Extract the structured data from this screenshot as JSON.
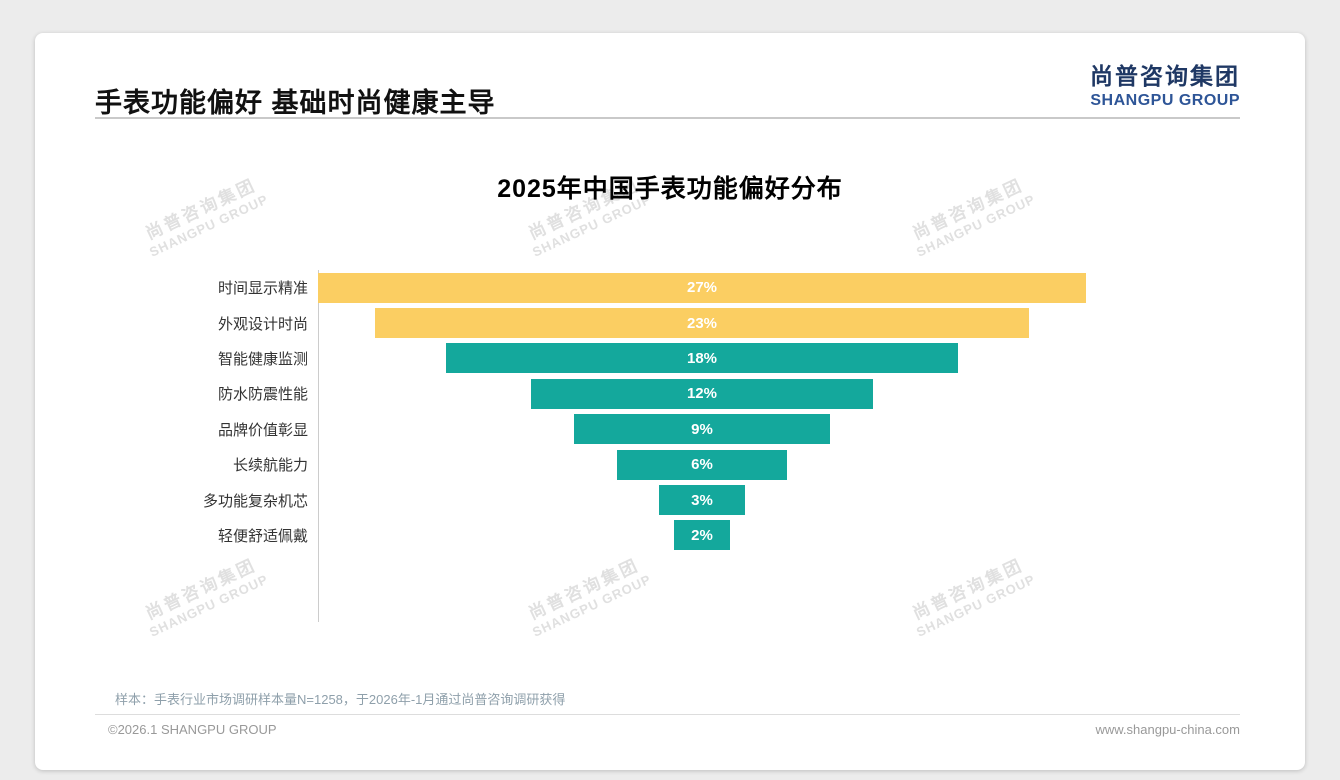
{
  "page": {
    "title": "手表功能偏好 基础时尚健康主导",
    "logo": {
      "cn": "尚普咨询集团",
      "en": "SHANGPU GROUP"
    },
    "watermark": {
      "cn": "尚普咨询集团",
      "en": "SHANGPU GROUP"
    },
    "footnote": "样本：手表行业市场调研样本量N=1258，于2026年-1月通过尚普咨询调研获得",
    "footer_left": "©2026.1 SHANGPU GROUP",
    "footer_right": "www.shangpu-china.com"
  },
  "chart_data": {
    "type": "bar",
    "variant": "centered-funnel-horizontal",
    "title": "2025年中国手表功能偏好分布",
    "categories": [
      "时间显示精准",
      "外观设计时尚",
      "智能健康监测",
      "防水防震性能",
      "品牌价值彰显",
      "长续航能力",
      "多功能复杂机芯",
      "轻便舒适佩戴"
    ],
    "values": [
      27,
      23,
      18,
      12,
      9,
      6,
      3,
      2
    ],
    "value_labels": [
      "27%",
      "23%",
      "18%",
      "12%",
      "9%",
      "6%",
      "3%",
      "2%"
    ],
    "unit": "%",
    "xlim": [
      0,
      27
    ],
    "colors": [
      "#fbce62",
      "#fbce62",
      "#14a89c",
      "#14a89c",
      "#14a89c",
      "#14a89c",
      "#14a89c",
      "#14a89c"
    ],
    "accent_yellow": "#fbce62",
    "accent_teal": "#14a89c",
    "legend": "none",
    "grid": "off",
    "value_label_color": "#ffffff"
  }
}
